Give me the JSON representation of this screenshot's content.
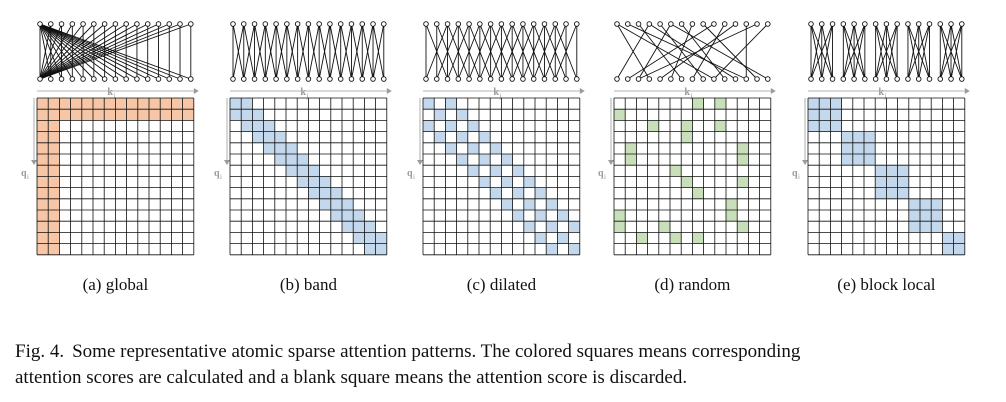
{
  "panels": [
    {
      "id": "global",
      "label": "(a)  global",
      "top_edges": [
        [
          0,
          0
        ],
        [
          0,
          1
        ],
        [
          0,
          2
        ],
        [
          0,
          3
        ],
        [
          0,
          4
        ],
        [
          0,
          5
        ],
        [
          0,
          6
        ],
        [
          0,
          7
        ],
        [
          0,
          8
        ],
        [
          0,
          9
        ],
        [
          0,
          10
        ],
        [
          0,
          11
        ],
        [
          0,
          12
        ],
        [
          0,
          13
        ],
        [
          0,
          14
        ],
        [
          1,
          0
        ],
        [
          2,
          0
        ],
        [
          3,
          0
        ],
        [
          4,
          0
        ],
        [
          5,
          0
        ],
        [
          6,
          0
        ],
        [
          7,
          0
        ],
        [
          8,
          0
        ],
        [
          9,
          0
        ],
        [
          10,
          0
        ],
        [
          11,
          0
        ],
        [
          12,
          0
        ],
        [
          13,
          0
        ],
        [
          14,
          0
        ],
        [
          1,
          1
        ],
        [
          2,
          2
        ],
        [
          3,
          3
        ],
        [
          4,
          4
        ],
        [
          5,
          5
        ],
        [
          6,
          6
        ],
        [
          7,
          7
        ],
        [
          8,
          8
        ],
        [
          9,
          9
        ],
        [
          10,
          10
        ],
        [
          11,
          11
        ],
        [
          12,
          12
        ],
        [
          13,
          13
        ],
        [
          14,
          14
        ]
      ],
      "cells": [
        [
          0,
          0
        ],
        [
          0,
          1
        ],
        [
          0,
          2
        ],
        [
          0,
          3
        ],
        [
          0,
          4
        ],
        [
          0,
          5
        ],
        [
          0,
          6
        ],
        [
          0,
          7
        ],
        [
          0,
          8
        ],
        [
          0,
          9
        ],
        [
          0,
          10
        ],
        [
          0,
          11
        ],
        [
          0,
          12
        ],
        [
          0,
          13
        ],
        [
          1,
          0
        ],
        [
          2,
          0
        ],
        [
          3,
          0
        ],
        [
          4,
          0
        ],
        [
          5,
          0
        ],
        [
          6,
          0
        ],
        [
          7,
          0
        ],
        [
          8,
          0
        ],
        [
          9,
          0
        ],
        [
          10,
          0
        ],
        [
          11,
          0
        ],
        [
          12,
          0
        ],
        [
          13,
          0
        ],
        [
          1,
          1
        ],
        [
          2,
          1
        ],
        [
          3,
          1
        ],
        [
          4,
          1
        ],
        [
          5,
          1
        ],
        [
          6,
          1
        ],
        [
          7,
          1
        ],
        [
          8,
          1
        ],
        [
          9,
          1
        ],
        [
          10,
          1
        ],
        [
          11,
          1
        ],
        [
          12,
          1
        ],
        [
          13,
          1
        ],
        [
          1,
          2
        ],
        [
          1,
          3
        ],
        [
          1,
          4
        ],
        [
          1,
          5
        ],
        [
          1,
          6
        ],
        [
          1,
          7
        ],
        [
          1,
          8
        ],
        [
          1,
          9
        ],
        [
          1,
          10
        ],
        [
          1,
          11
        ],
        [
          1,
          12
        ],
        [
          1,
          13
        ]
      ],
      "fill": "#f6c6a6"
    },
    {
      "id": "band",
      "label": "(b)  band",
      "top_edges": [
        [
          0,
          0
        ],
        [
          0,
          1
        ],
        [
          1,
          0
        ],
        [
          1,
          1
        ],
        [
          1,
          2
        ],
        [
          2,
          1
        ],
        [
          2,
          2
        ],
        [
          2,
          3
        ],
        [
          3,
          2
        ],
        [
          3,
          3
        ],
        [
          3,
          4
        ],
        [
          4,
          3
        ],
        [
          4,
          4
        ],
        [
          4,
          5
        ],
        [
          5,
          4
        ],
        [
          5,
          5
        ],
        [
          5,
          6
        ],
        [
          6,
          5
        ],
        [
          6,
          6
        ],
        [
          6,
          7
        ],
        [
          7,
          6
        ],
        [
          7,
          7
        ],
        [
          7,
          8
        ],
        [
          8,
          7
        ],
        [
          8,
          8
        ],
        [
          8,
          9
        ],
        [
          9,
          8
        ],
        [
          9,
          9
        ],
        [
          9,
          10
        ],
        [
          10,
          9
        ],
        [
          10,
          10
        ],
        [
          10,
          11
        ],
        [
          11,
          10
        ],
        [
          11,
          11
        ],
        [
          11,
          12
        ],
        [
          12,
          11
        ],
        [
          12,
          12
        ],
        [
          12,
          13
        ],
        [
          13,
          12
        ],
        [
          13,
          13
        ],
        [
          13,
          14
        ],
        [
          14,
          13
        ],
        [
          14,
          14
        ]
      ],
      "cells": [
        [
          0,
          0
        ],
        [
          0,
          1
        ],
        [
          1,
          0
        ],
        [
          1,
          1
        ],
        [
          1,
          2
        ],
        [
          2,
          1
        ],
        [
          2,
          2
        ],
        [
          2,
          3
        ],
        [
          3,
          2
        ],
        [
          3,
          3
        ],
        [
          3,
          4
        ],
        [
          4,
          3
        ],
        [
          4,
          4
        ],
        [
          4,
          5
        ],
        [
          5,
          4
        ],
        [
          5,
          5
        ],
        [
          5,
          6
        ],
        [
          6,
          5
        ],
        [
          6,
          6
        ],
        [
          6,
          7
        ],
        [
          7,
          6
        ],
        [
          7,
          7
        ],
        [
          7,
          8
        ],
        [
          8,
          7
        ],
        [
          8,
          8
        ],
        [
          8,
          9
        ],
        [
          9,
          8
        ],
        [
          9,
          9
        ],
        [
          9,
          10
        ],
        [
          10,
          9
        ],
        [
          10,
          10
        ],
        [
          10,
          11
        ],
        [
          11,
          10
        ],
        [
          11,
          11
        ],
        [
          11,
          12
        ],
        [
          12,
          11
        ],
        [
          12,
          12
        ],
        [
          12,
          13
        ],
        [
          13,
          12
        ],
        [
          13,
          13
        ]
      ],
      "fill": "#c3d8ec"
    },
    {
      "id": "dilated",
      "label": "(c)  dilated",
      "top_edges": [
        [
          0,
          0
        ],
        [
          0,
          2
        ],
        [
          1,
          1
        ],
        [
          1,
          3
        ],
        [
          2,
          0
        ],
        [
          2,
          2
        ],
        [
          2,
          4
        ],
        [
          3,
          1
        ],
        [
          3,
          3
        ],
        [
          3,
          5
        ],
        [
          4,
          2
        ],
        [
          4,
          4
        ],
        [
          4,
          6
        ],
        [
          5,
          3
        ],
        [
          5,
          5
        ],
        [
          5,
          7
        ],
        [
          6,
          4
        ],
        [
          6,
          6
        ],
        [
          6,
          8
        ],
        [
          7,
          5
        ],
        [
          7,
          7
        ],
        [
          7,
          9
        ],
        [
          8,
          6
        ],
        [
          8,
          8
        ],
        [
          8,
          10
        ],
        [
          9,
          7
        ],
        [
          9,
          9
        ],
        [
          9,
          11
        ],
        [
          10,
          8
        ],
        [
          10,
          10
        ],
        [
          10,
          12
        ],
        [
          11,
          9
        ],
        [
          11,
          11
        ],
        [
          11,
          13
        ],
        [
          12,
          10
        ],
        [
          12,
          12
        ],
        [
          12,
          14
        ],
        [
          13,
          11
        ],
        [
          13,
          13
        ],
        [
          14,
          12
        ],
        [
          14,
          14
        ]
      ],
      "cells": [
        [
          0,
          0
        ],
        [
          0,
          2
        ],
        [
          1,
          1
        ],
        [
          1,
          3
        ],
        [
          2,
          0
        ],
        [
          2,
          2
        ],
        [
          2,
          4
        ],
        [
          3,
          1
        ],
        [
          3,
          3
        ],
        [
          3,
          5
        ],
        [
          4,
          2
        ],
        [
          4,
          4
        ],
        [
          4,
          6
        ],
        [
          5,
          3
        ],
        [
          5,
          5
        ],
        [
          5,
          7
        ],
        [
          6,
          4
        ],
        [
          6,
          6
        ],
        [
          6,
          8
        ],
        [
          7,
          5
        ],
        [
          7,
          7
        ],
        [
          7,
          9
        ],
        [
          8,
          6
        ],
        [
          8,
          8
        ],
        [
          8,
          10
        ],
        [
          9,
          7
        ],
        [
          9,
          9
        ],
        [
          9,
          11
        ],
        [
          10,
          8
        ],
        [
          10,
          10
        ],
        [
          10,
          12
        ],
        [
          11,
          9
        ],
        [
          11,
          11
        ],
        [
          11,
          13
        ],
        [
          12,
          10
        ],
        [
          12,
          12
        ],
        [
          13,
          11
        ],
        [
          13,
          13
        ]
      ],
      "fill": "#c3d8ec"
    },
    {
      "id": "random",
      "label": "(d)  random",
      "top_edges": [
        [
          0,
          3
        ],
        [
          0,
          9
        ],
        [
          1,
          12
        ],
        [
          2,
          6
        ],
        [
          3,
          0
        ],
        [
          3,
          11
        ],
        [
          4,
          8
        ],
        [
          5,
          2
        ],
        [
          5,
          14
        ],
        [
          6,
          10
        ],
        [
          7,
          5
        ],
        [
          8,
          13
        ],
        [
          9,
          1
        ],
        [
          10,
          7
        ],
        [
          11,
          4
        ],
        [
          12,
          12
        ],
        [
          13,
          2
        ],
        [
          14,
          9
        ]
      ],
      "cells": [
        [
          0,
          7
        ],
        [
          0,
          9
        ],
        [
          1,
          0
        ],
        [
          2,
          3
        ],
        [
          2,
          6
        ],
        [
          2,
          9
        ],
        [
          3,
          6
        ],
        [
          4,
          1
        ],
        [
          4,
          11
        ],
        [
          5,
          1
        ],
        [
          5,
          11
        ],
        [
          6,
          5
        ],
        [
          7,
          6
        ],
        [
          7,
          11
        ],
        [
          8,
          7
        ],
        [
          9,
          10
        ],
        [
          10,
          0
        ],
        [
          10,
          10
        ],
        [
          11,
          0
        ],
        [
          11,
          4
        ],
        [
          11,
          11
        ],
        [
          12,
          2
        ],
        [
          12,
          5
        ],
        [
          12,
          7
        ]
      ],
      "fill": "#c8e0b9"
    },
    {
      "id": "block-local",
      "label": "(e)  block local",
      "top_edges": [
        [
          0,
          0
        ],
        [
          0,
          1
        ],
        [
          0,
          2
        ],
        [
          1,
          0
        ],
        [
          1,
          1
        ],
        [
          1,
          2
        ],
        [
          2,
          0
        ],
        [
          2,
          1
        ],
        [
          2,
          2
        ],
        [
          3,
          3
        ],
        [
          3,
          4
        ],
        [
          3,
          5
        ],
        [
          4,
          3
        ],
        [
          4,
          4
        ],
        [
          4,
          5
        ],
        [
          5,
          3
        ],
        [
          5,
          4
        ],
        [
          5,
          5
        ],
        [
          6,
          6
        ],
        [
          6,
          7
        ],
        [
          6,
          8
        ],
        [
          7,
          6
        ],
        [
          7,
          7
        ],
        [
          7,
          8
        ],
        [
          8,
          6
        ],
        [
          8,
          7
        ],
        [
          8,
          8
        ],
        [
          9,
          9
        ],
        [
          9,
          10
        ],
        [
          9,
          11
        ],
        [
          10,
          9
        ],
        [
          10,
          10
        ],
        [
          10,
          11
        ],
        [
          11,
          9
        ],
        [
          11,
          10
        ],
        [
          11,
          11
        ],
        [
          12,
          12
        ],
        [
          12,
          13
        ],
        [
          12,
          14
        ],
        [
          13,
          12
        ],
        [
          13,
          13
        ],
        [
          13,
          14
        ],
        [
          14,
          12
        ],
        [
          14,
          13
        ],
        [
          14,
          14
        ]
      ],
      "cells": [
        [
          0,
          0
        ],
        [
          0,
          1
        ],
        [
          0,
          2
        ],
        [
          1,
          0
        ],
        [
          1,
          1
        ],
        [
          1,
          2
        ],
        [
          2,
          0
        ],
        [
          2,
          1
        ],
        [
          2,
          2
        ],
        [
          3,
          3
        ],
        [
          3,
          4
        ],
        [
          3,
          5
        ],
        [
          4,
          3
        ],
        [
          4,
          4
        ],
        [
          4,
          5
        ],
        [
          5,
          3
        ],
        [
          5,
          4
        ],
        [
          5,
          5
        ],
        [
          6,
          6
        ],
        [
          6,
          7
        ],
        [
          6,
          8
        ],
        [
          7,
          6
        ],
        [
          7,
          7
        ],
        [
          7,
          8
        ],
        [
          8,
          6
        ],
        [
          8,
          7
        ],
        [
          8,
          8
        ],
        [
          9,
          9
        ],
        [
          9,
          10
        ],
        [
          9,
          11
        ],
        [
          10,
          9
        ],
        [
          10,
          10
        ],
        [
          10,
          11
        ],
        [
          11,
          9
        ],
        [
          11,
          10
        ],
        [
          11,
          11
        ],
        [
          12,
          12
        ],
        [
          12,
          13
        ],
        [
          13,
          12
        ],
        [
          13,
          13
        ]
      ],
      "fill": "#c3d8ec"
    }
  ],
  "axis": {
    "k_label": "k",
    "k_sub": "j",
    "q_label": "q",
    "q_sub": "i",
    "color": "#9a9a9a"
  },
  "caption": {
    "label": "Fig. 4.",
    "line1": "Some representative atomic sparse attention patterns. The colored squares means corresponding",
    "line2": "attention scores are calculated and a blank square means the attention score is discarded."
  }
}
